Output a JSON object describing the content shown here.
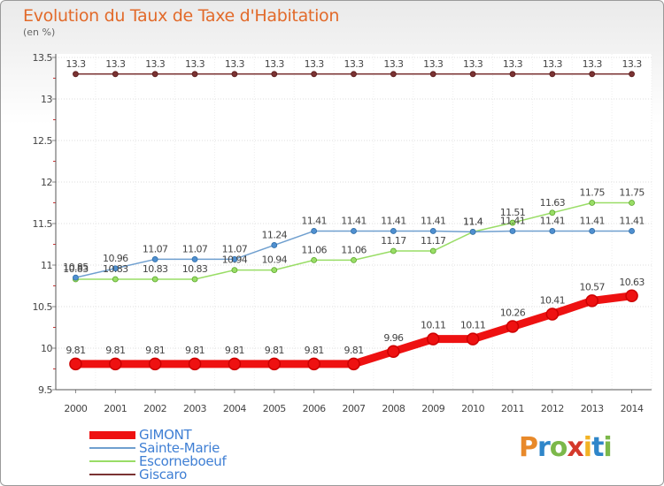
{
  "header": {
    "title": "Evolution du Taux de Taxe d'Habitation",
    "subtitle": "(en %)"
  },
  "brand": {
    "text": "Proxiti",
    "letter_colors": [
      "#e8892a",
      "#2f86c9",
      "#7cb84a",
      "#d4392b",
      "#f2b324",
      "#2f86c9",
      "#7cb84a"
    ]
  },
  "chart_data": {
    "type": "line",
    "title": "Evolution du Taux de Taxe d'Habitation",
    "ylabel": "(en %)",
    "xlabel": "",
    "x": [
      "2000",
      "2001",
      "2002",
      "2003",
      "2004",
      "2005",
      "2006",
      "2007",
      "2008",
      "2009",
      "2010",
      "2011",
      "2012",
      "2013",
      "2014"
    ],
    "ylim": [
      9.5,
      13.5
    ],
    "yticks": [
      "9.5",
      "10",
      "10.5",
      "11",
      "11.5",
      "12",
      "12.5",
      "13",
      "13.5"
    ],
    "grid": true,
    "legend_position": "bottom-left",
    "series": [
      {
        "name": "GIMONT",
        "color": "#ee1111",
        "values": [
          9.81,
          9.81,
          9.81,
          9.81,
          9.81,
          9.81,
          9.81,
          9.81,
          9.96,
          10.11,
          10.11,
          10.26,
          10.41,
          10.57,
          10.63
        ],
        "labels": [
          "9.81",
          "9.81",
          "9.81",
          "9.81",
          "9.81",
          "9.81",
          "9.81",
          "9.81",
          "9.96",
          "10.11",
          "10.11",
          "10.26",
          "10.41",
          "10.57",
          "10.63"
        ]
      },
      {
        "name": "Sainte-Marie",
        "color": "#6f9fcf",
        "values": [
          10.85,
          10.96,
          11.07,
          11.07,
          11.07,
          11.24,
          11.41,
          11.41,
          11.41,
          11.41,
          11.4,
          11.41,
          11.41,
          11.41,
          11.41
        ],
        "labels": [
          "10.85",
          "10.96",
          "11.07",
          "11.07",
          "11.07",
          "11.24",
          "11.41",
          "11.41",
          "11.41",
          "11.41",
          "11.4",
          "11.41",
          "11.41",
          "11.41",
          "11.41"
        ]
      },
      {
        "name": "Escorneboeuf",
        "color": "#99dd66",
        "values": [
          10.83,
          10.83,
          10.83,
          10.83,
          10.94,
          10.94,
          11.06,
          11.06,
          11.17,
          11.17,
          11.4,
          11.51,
          11.63,
          11.75,
          11.75
        ],
        "labels": [
          "10.83",
          "10.83",
          "10.83",
          "10.83",
          "10.94",
          "10.94",
          "11.06",
          "11.06",
          "11.17",
          "11.17",
          "11.4",
          "11.51",
          "11.63",
          "11.75",
          "11.75"
        ]
      },
      {
        "name": "Giscaro",
        "color": "#7a3333",
        "values": [
          13.3,
          13.3,
          13.3,
          13.3,
          13.3,
          13.3,
          13.3,
          13.3,
          13.3,
          13.3,
          13.3,
          13.3,
          13.3,
          13.3,
          13.3
        ],
        "labels": [
          "13.3",
          "13.3",
          "13.3",
          "13.3",
          "13.3",
          "13.3",
          "13.3",
          "13.3",
          "13.3",
          "13.3",
          "13.3",
          "13.3",
          "13.3",
          "13.3",
          "13.3"
        ]
      }
    ]
  }
}
